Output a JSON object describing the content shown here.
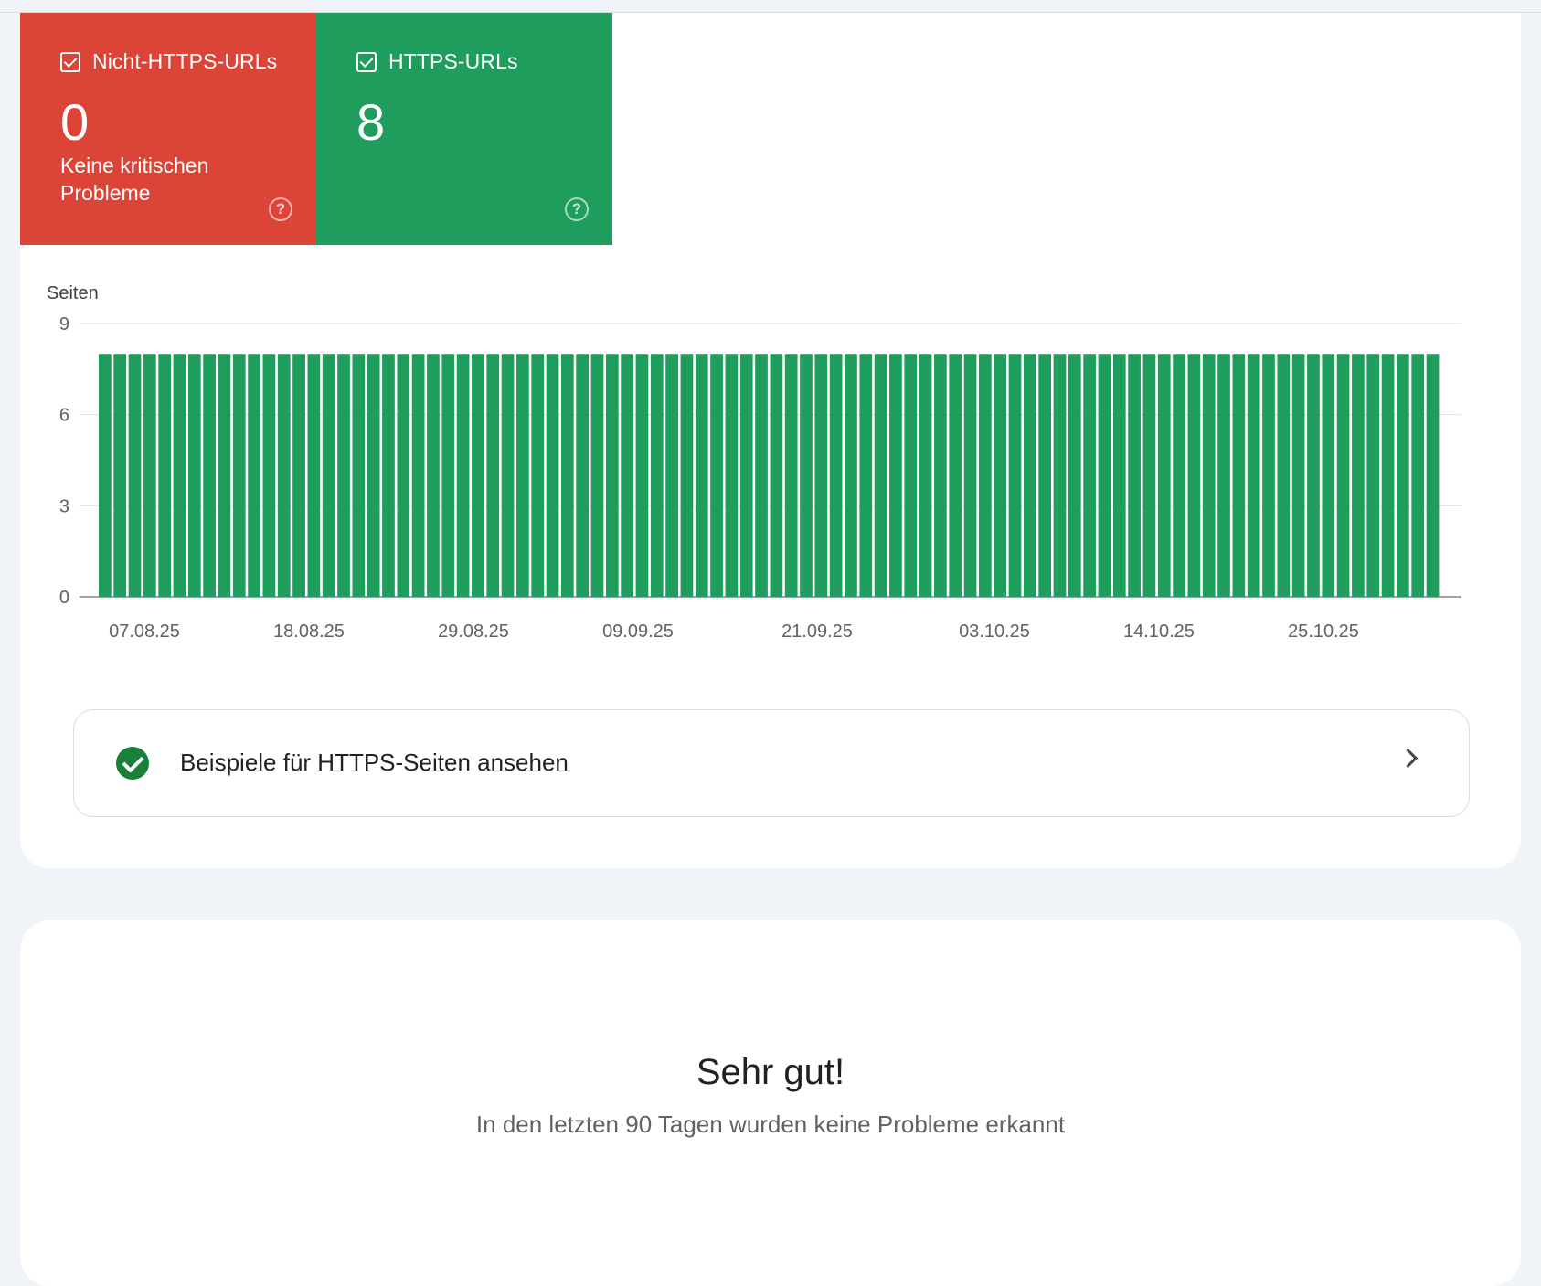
{
  "tiles": {
    "non_https": {
      "label": "Nicht-HTTPS-URLs",
      "value": "0",
      "subtitle": "Keine kritischen Probleme",
      "color": "#db4437"
    },
    "https": {
      "label": "HTTPS-URLs",
      "value": "8",
      "color": "#1f9d5c"
    }
  },
  "chart_data": {
    "type": "bar",
    "ylabel": "Seiten",
    "ylim": [
      0,
      9
    ],
    "yticks": [
      "0",
      "3",
      "6",
      "9"
    ],
    "xtick_labels": [
      "07.08.25",
      "18.08.25",
      "29.08.25",
      "09.09.25",
      "21.09.25",
      "03.10.25",
      "14.10.25",
      "25.10.25"
    ],
    "bar_count": 90,
    "values": [
      8,
      8,
      8,
      8,
      8,
      8,
      8,
      8,
      8,
      8,
      8,
      8,
      8,
      8,
      8,
      8,
      8,
      8,
      8,
      8,
      8,
      8,
      8,
      8,
      8,
      8,
      8,
      8,
      8,
      8,
      8,
      8,
      8,
      8,
      8,
      8,
      8,
      8,
      8,
      8,
      8,
      8,
      8,
      8,
      8,
      8,
      8,
      8,
      8,
      8,
      8,
      8,
      8,
      8,
      8,
      8,
      8,
      8,
      8,
      8,
      8,
      8,
      8,
      8,
      8,
      8,
      8,
      8,
      8,
      8,
      8,
      8,
      8,
      8,
      8,
      8,
      8,
      8,
      8,
      8,
      8,
      8,
      8,
      8,
      8,
      8,
      8,
      8,
      8,
      8
    ],
    "bar_color": "#1f9d5c",
    "grid": true
  },
  "examples": {
    "label": "Beispiele für HTTPS-Seiten ansehen"
  },
  "status": {
    "title": "Sehr gut!",
    "subtitle": "In den letzten 90 Tagen wurden keine Probleme erkannt"
  }
}
